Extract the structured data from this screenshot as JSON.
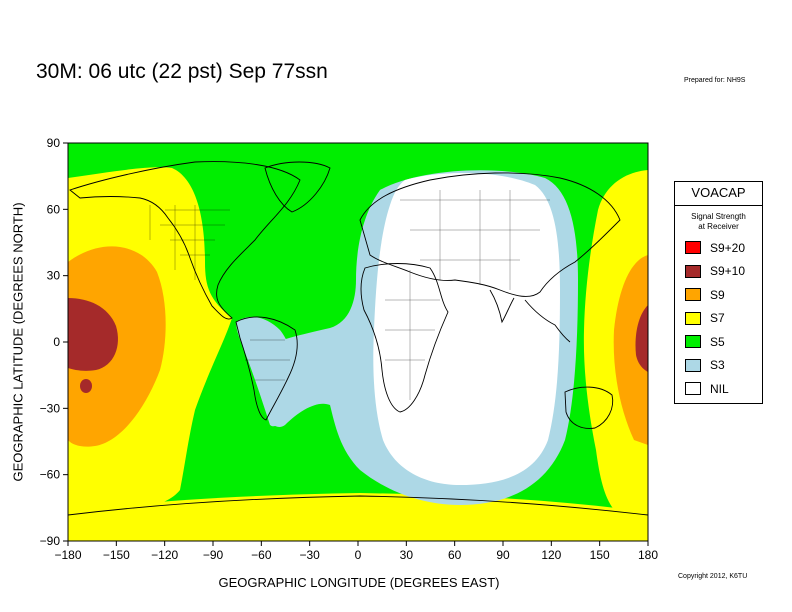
{
  "title": "30M:  06 utc (22 pst) Sep 77ssn",
  "prepared_for": "Prepared for: NH9S",
  "copyright": "Copyright 2012, K6TU",
  "axes": {
    "xlabel": "GEOGRAPHIC LONGITUDE (DEGREES EAST)",
    "ylabel": "GEOGRAPHIC LATITUDE (DEGREES NORTH)",
    "xlim": [
      -180,
      180
    ],
    "ylim": [
      -90,
      90
    ],
    "xticks": [
      "−180",
      "−150",
      "−120",
      "−90",
      "−60",
      "−30",
      "0",
      "30",
      "60",
      "90",
      "120",
      "150",
      "180"
    ],
    "yticks": [
      "90",
      "60",
      "30",
      "0",
      "−30",
      "−60",
      "−90"
    ]
  },
  "legend": {
    "title": "VOACAP",
    "subtitle_line1": "Signal Strength",
    "subtitle_line2": "at Receiver",
    "items": [
      {
        "label": "S9+20",
        "color": "#ff0000"
      },
      {
        "label": "S9+10",
        "color": "#a52a2a"
      },
      {
        "label": "S9",
        "color": "#ffa500"
      },
      {
        "label": "S7",
        "color": "#ffff00"
      },
      {
        "label": "S5",
        "color": "#00ee00"
      },
      {
        "label": "S3",
        "color": "#add8e6"
      },
      {
        "label": "NIL",
        "color": "#ffffff"
      }
    ]
  },
  "colors": {
    "s9": "#ffa500",
    "s9p10": "#a52a2a",
    "s7": "#ffff00",
    "s5": "#00ee00",
    "s3": "#add8e6",
    "nil": "#ffffff",
    "coast": "#000000"
  }
}
